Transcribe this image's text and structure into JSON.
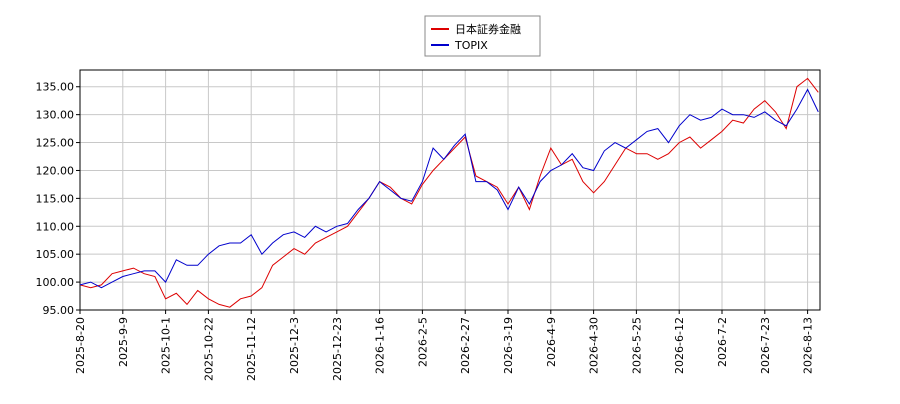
{
  "chart_data": {
    "type": "line",
    "categories": [
      "2025-8-20",
      null,
      null,
      null,
      "2025-9-9",
      null,
      null,
      null,
      "2025-10-1",
      null,
      null,
      null,
      "2025-10-22",
      null,
      null,
      null,
      "2025-11-12",
      null,
      null,
      null,
      "2025-12-3",
      null,
      null,
      null,
      "2025-12-23",
      null,
      null,
      null,
      "2026-1-16",
      null,
      null,
      null,
      "2026-2-5",
      null,
      null,
      null,
      "2026-2-27",
      null,
      null,
      null,
      "2026-3-19",
      null,
      null,
      null,
      "2026-4-9",
      null,
      null,
      null,
      "2026-4-30",
      null,
      null,
      null,
      "2026-5-25",
      null,
      null,
      null,
      "2026-6-12",
      null,
      null,
      null,
      "2026-7-2",
      null,
      null,
      null,
      "2026-7-23",
      null,
      null,
      null,
      "2026-8-13",
      null
    ],
    "series": [
      {
        "name": "日本証券金融",
        "color": "#dd0000",
        "values": [
          99.5,
          99,
          99.5,
          101.5,
          102,
          102.5,
          101.5,
          101,
          97,
          98,
          96,
          98.5,
          97,
          96,
          95.5,
          97,
          97.5,
          99,
          103,
          104.5,
          106,
          105,
          107,
          108,
          109,
          110,
          112.5,
          115,
          118,
          117,
          115,
          114,
          117.5,
          120,
          122,
          124,
          126,
          119,
          118,
          117,
          114,
          117,
          113,
          119,
          124,
          121,
          122,
          118,
          116,
          118,
          121,
          124,
          123,
          123,
          122,
          123,
          125,
          126,
          124,
          125.5,
          127,
          129,
          128.5,
          131,
          132.5,
          130.5,
          127.5,
          135,
          136.5,
          134
        ]
      },
      {
        "name": "TOPIX",
        "color": "#0000cc",
        "values": [
          99.5,
          100,
          99,
          100,
          101,
          101.5,
          102,
          102,
          100,
          104,
          103,
          103,
          105,
          106.5,
          107,
          107,
          108.5,
          105,
          107,
          108.5,
          109,
          108,
          110,
          109,
          110,
          110.5,
          113,
          115,
          118,
          116.5,
          115,
          114.5,
          118,
          124,
          122,
          124.5,
          126.5,
          118,
          118,
          116.5,
          113,
          117,
          114,
          118,
          120,
          121,
          123,
          120.5,
          120,
          123.5,
          125,
          124,
          125.5,
          127,
          127.5,
          125,
          128,
          130,
          129,
          129.5,
          131,
          130,
          130,
          129.5,
          130.5,
          129,
          128,
          131,
          134.5,
          130.5
        ]
      }
    ],
    "ylim": [
      95,
      138
    ],
    "yticks": [
      {
        "value": 95,
        "label": "95.00"
      },
      {
        "value": 100,
        "label": "100.00"
      },
      {
        "value": 105,
        "label": "105.00"
      },
      {
        "value": 110,
        "label": "110.00"
      },
      {
        "value": 115,
        "label": "115.00"
      },
      {
        "value": 120,
        "label": "120.00"
      },
      {
        "value": 125,
        "label": "125.00"
      },
      {
        "value": 130,
        "label": "130.00"
      },
      {
        "value": 135,
        "label": "135.00"
      }
    ],
    "grid": true
  }
}
